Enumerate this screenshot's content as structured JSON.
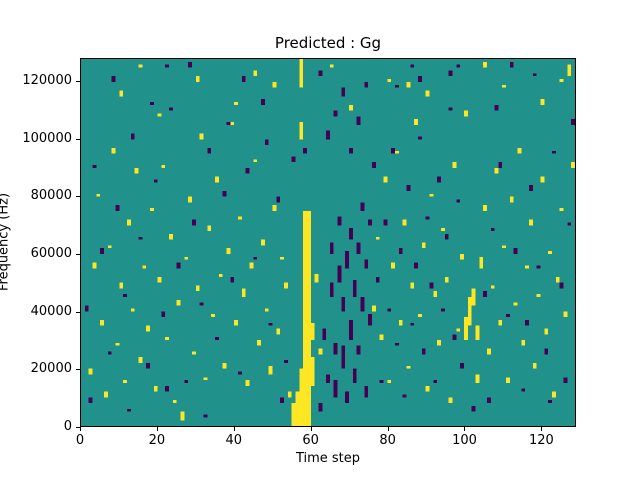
{
  "figure": {
    "title": "Predicted : Gg"
  },
  "chart_data": {
    "type": "heatmap",
    "title": "Predicted : Gg",
    "xlabel": "Time step",
    "ylabel": "Frequency (Hz)",
    "x_ticks": [
      0,
      20,
      40,
      60,
      80,
      100,
      120
    ],
    "y_ticks": [
      0,
      20000,
      40000,
      60000,
      80000,
      100000,
      120000
    ],
    "x_max": 129,
    "y_max": 128000,
    "grid_cols": 129,
    "grid_rows": 128,
    "legend": "none",
    "grid": false,
    "colors": {
      "background": "#21918c",
      "low": "#440154",
      "high": "#fde725"
    },
    "cells_high": [
      [
        2,
        18,
        2
      ],
      [
        3,
        55,
        2
      ],
      [
        4,
        80,
        1
      ],
      [
        5,
        35,
        2
      ],
      [
        6,
        10,
        2
      ],
      [
        7,
        62,
        1
      ],
      [
        8,
        95,
        2
      ],
      [
        9,
        28,
        1
      ],
      [
        10,
        48,
        2
      ],
      [
        11,
        15,
        1
      ],
      [
        12,
        70,
        2
      ],
      [
        13,
        40,
        1
      ],
      [
        14,
        88,
        2
      ],
      [
        15,
        22,
        2
      ],
      [
        16,
        55,
        1
      ],
      [
        17,
        33,
        2
      ],
      [
        18,
        75,
        1
      ],
      [
        19,
        12,
        2
      ],
      [
        20,
        50,
        2
      ],
      [
        21,
        90,
        1
      ],
      [
        22,
        30,
        1
      ],
      [
        23,
        65,
        2
      ],
      [
        24,
        8,
        1
      ],
      [
        25,
        42,
        2
      ],
      [
        26,
        2,
        3
      ],
      [
        27,
        58,
        1
      ],
      [
        28,
        78,
        2
      ],
      [
        29,
        25,
        1
      ],
      [
        30,
        47,
        2
      ],
      [
        31,
        100,
        2
      ],
      [
        32,
        16,
        1
      ],
      [
        33,
        68,
        2
      ],
      [
        34,
        38,
        1
      ],
      [
        35,
        85,
        2
      ],
      [
        36,
        52,
        1
      ],
      [
        37,
        20,
        2
      ],
      [
        38,
        60,
        2
      ],
      [
        39,
        105,
        1
      ],
      [
        40,
        35,
        2
      ],
      [
        41,
        72,
        1
      ],
      [
        42,
        45,
        3
      ],
      [
        43,
        14,
        2
      ],
      [
        44,
        55,
        2
      ],
      [
        45,
        92,
        1
      ],
      [
        46,
        28,
        2
      ],
      [
        47,
        63,
        2
      ],
      [
        48,
        40,
        1
      ],
      [
        49,
        18,
        3
      ],
      [
        50,
        75,
        2
      ],
      [
        51,
        32,
        2
      ],
      [
        52,
        58,
        1
      ],
      [
        53,
        48,
        2
      ],
      [
        54,
        10,
        2
      ],
      [
        55,
        0,
        8
      ],
      [
        56,
        0,
        12
      ],
      [
        57,
        0,
        20
      ],
      [
        58,
        0,
        75
      ],
      [
        59,
        0,
        75
      ],
      [
        60,
        14,
        10
      ],
      [
        60,
        30,
        6
      ],
      [
        57,
        100,
        6
      ],
      [
        57,
        118,
        10
      ],
      [
        61,
        50,
        3
      ],
      [
        62,
        25,
        2
      ],
      [
        76,
        40,
        2
      ],
      [
        77,
        65,
        1
      ],
      [
        78,
        30,
        2
      ],
      [
        79,
        85,
        2
      ],
      [
        80,
        15,
        1
      ],
      [
        81,
        55,
        2
      ],
      [
        82,
        95,
        1
      ],
      [
        83,
        35,
        2
      ],
      [
        84,
        70,
        2
      ],
      [
        85,
        20,
        1
      ],
      [
        86,
        48,
        2
      ],
      [
        87,
        105,
        2
      ],
      [
        88,
        38,
        1
      ],
      [
        89,
        62,
        2
      ],
      [
        90,
        12,
        2
      ],
      [
        91,
        80,
        1
      ],
      [
        92,
        45,
        2
      ],
      [
        93,
        28,
        2
      ],
      [
        94,
        68,
        1
      ],
      [
        95,
        50,
        2
      ],
      [
        96,
        8,
        2
      ],
      [
        97,
        90,
        2
      ],
      [
        98,
        33,
        1
      ],
      [
        99,
        58,
        2
      ],
      [
        100,
        30,
        8
      ],
      [
        101,
        35,
        10
      ],
      [
        102,
        42,
        6
      ],
      [
        103,
        30,
        5
      ],
      [
        104,
        55,
        4
      ],
      [
        103,
        15,
        3
      ],
      [
        105,
        75,
        2
      ],
      [
        106,
        25,
        2
      ],
      [
        107,
        48,
        1
      ],
      [
        108,
        88,
        2
      ],
      [
        109,
        35,
        2
      ],
      [
        110,
        62,
        1
      ],
      [
        111,
        15,
        2
      ],
      [
        112,
        78,
        2
      ],
      [
        113,
        42,
        1
      ],
      [
        114,
        95,
        2
      ],
      [
        115,
        28,
        2
      ],
      [
        116,
        55,
        1
      ],
      [
        117,
        70,
        2
      ],
      [
        118,
        20,
        2
      ],
      [
        119,
        45,
        1
      ],
      [
        120,
        85,
        2
      ],
      [
        121,
        32,
        2
      ],
      [
        122,
        60,
        1
      ],
      [
        123,
        10,
        2
      ],
      [
        124,
        50,
        2
      ],
      [
        125,
        75,
        1
      ],
      [
        126,
        38,
        2
      ],
      [
        127,
        122,
        4
      ],
      [
        128,
        90,
        2
      ],
      [
        10,
        115,
        2
      ],
      [
        20,
        108,
        1
      ],
      [
        30,
        120,
        2
      ],
      [
        40,
        112,
        1
      ],
      [
        50,
        118,
        2
      ],
      [
        70,
        110,
        2
      ],
      [
        80,
        120,
        1
      ],
      [
        90,
        115,
        2
      ],
      [
        100,
        108,
        2
      ],
      [
        110,
        118,
        1
      ],
      [
        120,
        112,
        2
      ],
      [
        15,
        125,
        1
      ],
      [
        45,
        122,
        2
      ],
      [
        65,
        125,
        1
      ],
      [
        85,
        118,
        2
      ],
      [
        105,
        125,
        2
      ],
      [
        125,
        120,
        1
      ]
    ],
    "cells_low": [
      [
        1,
        40,
        2
      ],
      [
        3,
        90,
        1
      ],
      [
        5,
        60,
        2
      ],
      [
        7,
        25,
        1
      ],
      [
        9,
        75,
        2
      ],
      [
        11,
        45,
        1
      ],
      [
        13,
        100,
        2
      ],
      [
        15,
        65,
        1
      ],
      [
        17,
        20,
        2
      ],
      [
        19,
        85,
        1
      ],
      [
        21,
        38,
        2
      ],
      [
        23,
        110,
        1
      ],
      [
        25,
        55,
        2
      ],
      [
        27,
        15,
        1
      ],
      [
        29,
        70,
        2
      ],
      [
        31,
        42,
        1
      ],
      [
        33,
        95,
        2
      ],
      [
        35,
        30,
        1
      ],
      [
        37,
        80,
        2
      ],
      [
        39,
        50,
        2
      ],
      [
        41,
        18,
        1
      ],
      [
        43,
        88,
        2
      ],
      [
        45,
        58,
        1
      ],
      [
        47,
        112,
        2
      ],
      [
        49,
        35,
        1
      ],
      [
        51,
        78,
        2
      ],
      [
        53,
        22,
        1
      ],
      [
        55,
        92,
        2
      ],
      [
        42,
        120,
        2
      ],
      [
        22,
        125,
        1
      ],
      [
        62,
        5,
        3
      ],
      [
        63,
        30,
        4
      ],
      [
        64,
        15,
        3
      ],
      [
        65,
        45,
        5
      ],
      [
        65,
        60,
        4
      ],
      [
        66,
        10,
        6
      ],
      [
        66,
        25,
        4
      ],
      [
        67,
        50,
        6
      ],
      [
        67,
        70,
        3
      ],
      [
        68,
        20,
        8
      ],
      [
        68,
        40,
        5
      ],
      [
        69,
        55,
        6
      ],
      [
        69,
        8,
        4
      ],
      [
        70,
        30,
        7
      ],
      [
        70,
        65,
        4
      ],
      [
        71,
        15,
        5
      ],
      [
        71,
        45,
        6
      ],
      [
        72,
        60,
        4
      ],
      [
        72,
        25,
        3
      ],
      [
        73,
        40,
        5
      ],
      [
        73,
        75,
        3
      ],
      [
        74,
        10,
        4
      ],
      [
        74,
        55,
        3
      ],
      [
        75,
        35,
        4
      ],
      [
        75,
        70,
        2
      ],
      [
        76,
        90,
        2
      ],
      [
        64,
        100,
        3
      ],
      [
        66,
        108,
        2
      ],
      [
        68,
        115,
        3
      ],
      [
        70,
        95,
        2
      ],
      [
        72,
        105,
        3
      ],
      [
        74,
        118,
        2
      ],
      [
        77,
        50,
        2
      ],
      [
        78,
        15,
        1
      ],
      [
        79,
        70,
        2
      ],
      [
        80,
        40,
        1
      ],
      [
        81,
        95,
        2
      ],
      [
        82,
        28,
        1
      ],
      [
        83,
        60,
        2
      ],
      [
        84,
        10,
        1
      ],
      [
        85,
        82,
        2
      ],
      [
        86,
        35,
        1
      ],
      [
        87,
        55,
        2
      ],
      [
        88,
        100,
        1
      ],
      [
        89,
        25,
        2
      ],
      [
        90,
        72,
        1
      ],
      [
        91,
        48,
        2
      ],
      [
        92,
        15,
        1
      ],
      [
        93,
        85,
        2
      ],
      [
        94,
        40,
        1
      ],
      [
        95,
        65,
        2
      ],
      [
        96,
        110,
        1
      ],
      [
        97,
        30,
        2
      ],
      [
        98,
        78,
        1
      ],
      [
        99,
        20,
        2
      ],
      [
        105,
        45,
        2
      ],
      [
        107,
        68,
        1
      ],
      [
        109,
        90,
        2
      ],
      [
        111,
        38,
        1
      ],
      [
        113,
        60,
        2
      ],
      [
        115,
        12,
        1
      ],
      [
        117,
        82,
        2
      ],
      [
        119,
        55,
        1
      ],
      [
        121,
        25,
        2
      ],
      [
        123,
        95,
        1
      ],
      [
        125,
        48,
        2
      ],
      [
        127,
        70,
        1
      ],
      [
        8,
        120,
        2
      ],
      [
        18,
        112,
        1
      ],
      [
        28,
        125,
        2
      ],
      [
        38,
        105,
        1
      ],
      [
        48,
        98,
        2
      ],
      [
        58,
        95,
        2
      ],
      [
        88,
        120,
        2
      ],
      [
        98,
        125,
        1
      ],
      [
        108,
        110,
        2
      ],
      [
        118,
        122,
        1
      ],
      [
        128,
        105,
        2
      ],
      [
        2,
        8,
        2
      ],
      [
        12,
        5,
        1
      ],
      [
        22,
        12,
        2
      ],
      [
        32,
        3,
        1
      ],
      [
        52,
        8,
        2
      ],
      [
        62,
        122,
        2
      ],
      [
        82,
        118,
        1
      ],
      [
        102,
        5,
        2
      ],
      [
        112,
        125,
        2
      ],
      [
        122,
        8,
        1
      ],
      [
        106,
        8,
        2
      ],
      [
        96,
        122,
        2
      ],
      [
        86,
        125,
        1
      ],
      [
        116,
        35,
        2
      ],
      [
        126,
        15,
        2
      ]
    ]
  }
}
